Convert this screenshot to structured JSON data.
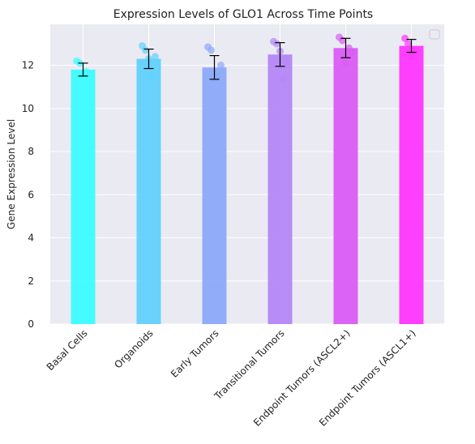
{
  "chart_data": {
    "type": "bar",
    "title": "Expression Levels of GLO1 Across Time Points",
    "xlabel": "",
    "ylabel": "Gene Expression Level",
    "ylim": [
      0,
      13.9
    ],
    "yticks": [
      0,
      2,
      4,
      6,
      8,
      10,
      12
    ],
    "categories": [
      "Basal Cells",
      "Organoids",
      "Early Tumors",
      "Transitional Tumors",
      "Endpoint Tumors (ASCL2+)",
      "Endpoint Tumors (ASCL1+)"
    ],
    "values": [
      11.8,
      12.3,
      11.9,
      12.5,
      12.8,
      12.9
    ],
    "errors": [
      0.3,
      0.45,
      0.55,
      0.55,
      0.45,
      0.3
    ],
    "points": [
      [
        12.2,
        12.1,
        11.5,
        11.7
      ],
      [
        12.9,
        12.7,
        12.3,
        11.55,
        12.4
      ],
      [
        12.85,
        12.7,
        11.4,
        11.5,
        12.0
      ],
      [
        13.1,
        13.0,
        12.65,
        11.35,
        12.3
      ],
      [
        13.3,
        13.15,
        12.1,
        12.8,
        12.6
      ],
      [
        13.25,
        13.0,
        12.4,
        12.7
      ]
    ],
    "colors": [
      "#3dfcff",
      "#61d1fd",
      "#8caafa",
      "#b487f6",
      "#da5cf4",
      "#ff36fe"
    ],
    "grid": true,
    "legend": "top-right"
  }
}
